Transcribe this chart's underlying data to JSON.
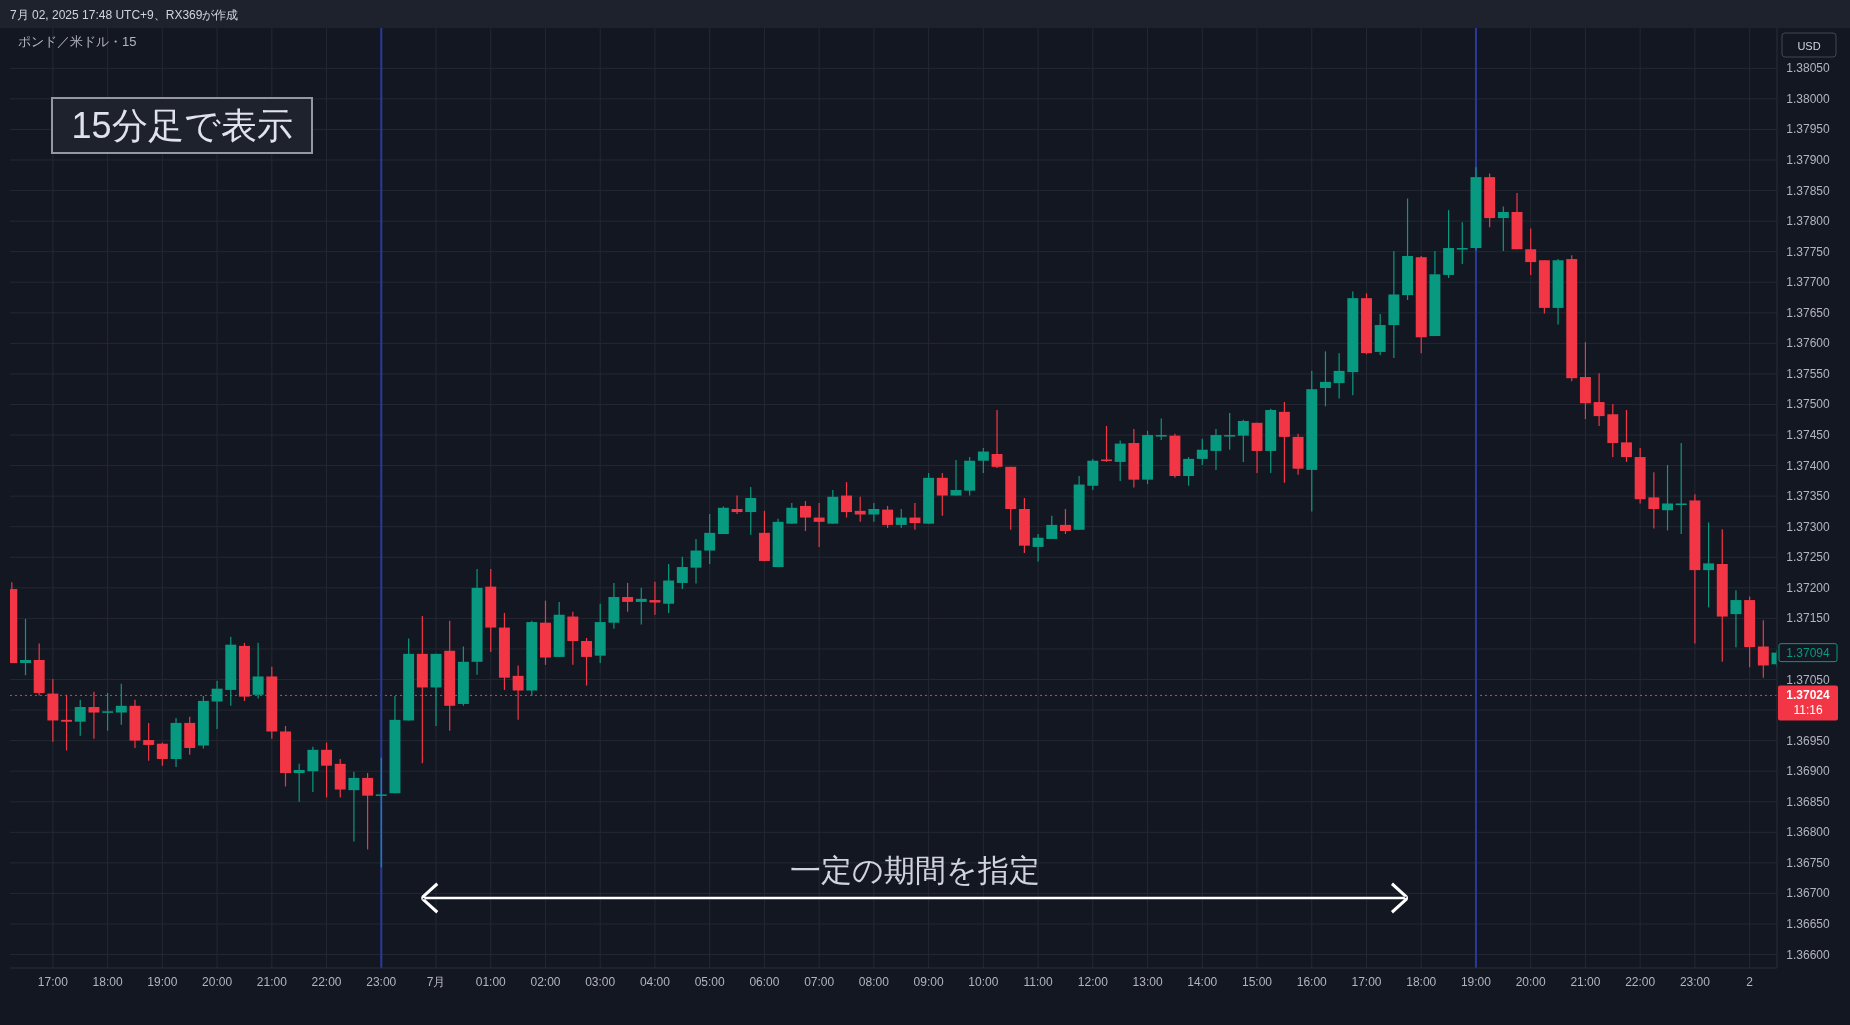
{
  "chart_data": {
    "type": "candlestick",
    "title": "7月 02, 2025 17:48 UTC+9、RX369が作成",
    "subtitle": "ポンド／米ドル・15",
    "ylabel": "USD",
    "x": [
      "2025-06-30T16:15",
      "2025-06-30T16:30",
      "2025-06-30T16:45",
      "2025-06-30T17:00",
      "2025-06-30T17:15",
      "2025-06-30T17:30",
      "2025-06-30T17:45",
      "2025-06-30T18:00",
      "2025-06-30T18:15",
      "2025-06-30T18:30",
      "2025-06-30T18:45",
      "2025-06-30T19:00",
      "2025-06-30T19:15",
      "2025-06-30T19:30",
      "2025-06-30T19:45",
      "2025-06-30T20:00",
      "2025-06-30T20:15",
      "2025-06-30T20:30",
      "2025-06-30T20:45",
      "2025-06-30T21:00",
      "2025-06-30T21:15",
      "2025-06-30T21:30",
      "2025-06-30T21:45",
      "2025-06-30T22:00",
      "2025-06-30T22:15",
      "2025-06-30T22:30",
      "2025-06-30T22:45",
      "2025-06-30T23:00",
      "2025-06-30T23:15",
      "2025-06-30T23:30",
      "2025-06-30T23:45",
      "2025-07-01T00:00",
      "2025-07-01T00:15",
      "2025-07-01T00:30",
      "2025-07-01T00:45",
      "2025-07-01T01:00",
      "2025-07-01T01:15",
      "2025-07-01T01:30",
      "2025-07-01T01:45",
      "2025-07-01T02:00",
      "2025-07-01T02:15",
      "2025-07-01T02:30",
      "2025-07-01T02:45",
      "2025-07-01T03:00",
      "2025-07-01T03:15",
      "2025-07-01T03:30",
      "2025-07-01T03:45",
      "2025-07-01T04:00",
      "2025-07-01T04:15",
      "2025-07-01T04:30",
      "2025-07-01T04:45",
      "2025-07-01T05:00",
      "2025-07-01T05:15",
      "2025-07-01T05:30",
      "2025-07-01T05:45",
      "2025-07-01T06:00",
      "2025-07-01T06:15",
      "2025-07-01T06:30",
      "2025-07-01T06:45",
      "2025-07-01T07:00",
      "2025-07-01T07:15",
      "2025-07-01T07:30",
      "2025-07-01T07:45",
      "2025-07-01T08:00",
      "2025-07-01T08:15",
      "2025-07-01T08:30",
      "2025-07-01T08:45",
      "2025-07-01T09:00",
      "2025-07-01T09:15",
      "2025-07-01T09:30",
      "2025-07-01T09:45",
      "2025-07-01T10:00",
      "2025-07-01T10:15",
      "2025-07-01T10:30",
      "2025-07-01T10:45",
      "2025-07-01T11:00",
      "2025-07-01T11:15",
      "2025-07-01T11:30",
      "2025-07-01T11:45",
      "2025-07-01T12:00",
      "2025-07-01T12:15",
      "2025-07-01T12:30",
      "2025-07-01T12:45",
      "2025-07-01T13:00",
      "2025-07-01T13:15",
      "2025-07-01T13:30",
      "2025-07-01T13:45",
      "2025-07-01T14:00",
      "2025-07-01T14:15",
      "2025-07-01T14:30",
      "2025-07-01T14:45",
      "2025-07-01T15:00",
      "2025-07-01T15:15",
      "2025-07-01T15:30",
      "2025-07-01T15:45",
      "2025-07-01T16:00",
      "2025-07-01T16:15",
      "2025-07-01T16:30",
      "2025-07-01T16:45",
      "2025-07-01T17:00",
      "2025-07-01T17:15",
      "2025-07-01T17:30",
      "2025-07-01T17:45",
      "2025-07-01T18:00",
      "2025-07-01T18:15",
      "2025-07-01T18:30",
      "2025-07-01T18:45",
      "2025-07-01T19:00",
      "2025-07-01T19:15",
      "2025-07-01T19:30",
      "2025-07-01T19:45",
      "2025-07-01T20:00",
      "2025-07-01T20:15",
      "2025-07-01T20:30",
      "2025-07-01T20:45",
      "2025-07-01T21:00",
      "2025-07-01T21:15",
      "2025-07-01T21:30",
      "2025-07-01T21:45",
      "2025-07-01T22:00",
      "2025-07-01T22:15",
      "2025-07-01T22:30",
      "2025-07-01T22:45",
      "2025-07-01T23:00",
      "2025-07-01T23:15",
      "2025-07-01T23:30",
      "2025-07-01T23:45",
      "2025-07-02T00:00",
      "2025-07-02T00:15",
      "2025-07-02T00:30"
    ],
    "ohlc": [
      [
        1.37198,
        1.37209,
        1.37077,
        1.37077
      ],
      [
        1.37077,
        1.37149,
        1.37057,
        1.37082
      ],
      [
        1.37082,
        1.37109,
        1.37024,
        1.37028
      ],
      [
        1.37027,
        1.37051,
        1.36948,
        1.36983
      ],
      [
        1.36984,
        1.37025,
        1.36934,
        1.36981
      ],
      [
        1.36981,
        1.37017,
        1.36958,
        1.37005
      ],
      [
        1.37005,
        1.3703,
        1.36953,
        1.36996
      ],
      [
        1.36996,
        1.37028,
        1.36966,
        1.36998
      ],
      [
        1.36996,
        1.37043,
        1.36976,
        1.37007
      ],
      [
        1.37007,
        1.37017,
        1.36938,
        1.3695
      ],
      [
        1.36951,
        1.36979,
        1.36917,
        1.36943
      ],
      [
        1.36945,
        1.36947,
        1.36909,
        1.3692
      ],
      [
        1.3692,
        1.36987,
        1.36907,
        1.36979
      ],
      [
        1.36979,
        1.36989,
        1.36927,
        1.36938
      ],
      [
        1.36942,
        1.37023,
        1.36937,
        1.37015
      ],
      [
        1.37014,
        1.37048,
        1.36969,
        1.37035
      ],
      [
        1.37033,
        1.3712,
        1.37007,
        1.37107
      ],
      [
        1.37105,
        1.3711,
        1.37015,
        1.37022
      ],
      [
        1.37025,
        1.3711,
        1.37019,
        1.37055
      ],
      [
        1.37055,
        1.37071,
        1.36953,
        1.36965
      ],
      [
        1.36965,
        1.36974,
        1.36875,
        1.36897
      ],
      [
        1.36897,
        1.36912,
        1.3685,
        1.36902
      ],
      [
        1.369,
        1.3694,
        1.36866,
        1.36935
      ],
      [
        1.36935,
        1.36947,
        1.36857,
        1.36909
      ],
      [
        1.36912,
        1.3692,
        1.36857,
        1.3687
      ],
      [
        1.36869,
        1.36899,
        1.36785,
        1.36889
      ],
      [
        1.36889,
        1.36897,
        1.36772,
        1.3686
      ],
      [
        1.36861,
        1.36922,
        1.36743,
        1.36862
      ],
      [
        1.36864,
        1.37023,
        1.36864,
        1.36984
      ],
      [
        1.36983,
        1.37117,
        1.36983,
        1.37092
      ],
      [
        1.37092,
        1.37154,
        1.36913,
        1.37037
      ],
      [
        1.37037,
        1.37092,
        1.36974,
        1.37092
      ],
      [
        1.37097,
        1.37146,
        1.36966,
        1.37007
      ],
      [
        1.3701,
        1.37104,
        1.37007,
        1.37079
      ],
      [
        1.37079,
        1.37231,
        1.37058,
        1.372
      ],
      [
        1.37202,
        1.37231,
        1.37095,
        1.37135
      ],
      [
        1.37135,
        1.37159,
        1.37033,
        1.37053
      ],
      [
        1.37056,
        1.37073,
        1.36984,
        1.37032
      ],
      [
        1.37032,
        1.37146,
        1.37023,
        1.37144
      ],
      [
        1.37143,
        1.37179,
        1.37074,
        1.37086
      ],
      [
        1.37087,
        1.37177,
        1.37087,
        1.37156
      ],
      [
        1.37153,
        1.37161,
        1.37074,
        1.37113
      ],
      [
        1.37113,
        1.37118,
        1.3704,
        1.37087
      ],
      [
        1.37089,
        1.37174,
        1.37077,
        1.37144
      ],
      [
        1.37143,
        1.37208,
        1.37133,
        1.37185
      ],
      [
        1.37185,
        1.37208,
        1.37161,
        1.37177
      ],
      [
        1.37177,
        1.372,
        1.3714,
        1.37182
      ],
      [
        1.3718,
        1.3721,
        1.37156,
        1.37176
      ],
      [
        1.37174,
        1.37239,
        1.37159,
        1.37212
      ],
      [
        1.37208,
        1.37251,
        1.37198,
        1.37234
      ],
      [
        1.37233,
        1.3728,
        1.37207,
        1.37261
      ],
      [
        1.37261,
        1.37321,
        1.37239,
        1.3729
      ],
      [
        1.37288,
        1.37333,
        1.37288,
        1.37331
      ],
      [
        1.37329,
        1.37351,
        1.37321,
        1.37324
      ],
      [
        1.37324,
        1.37365,
        1.37287,
        1.37347
      ],
      [
        1.3729,
        1.37326,
        1.37244,
        1.37244
      ],
      [
        1.37234,
        1.37313,
        1.37234,
        1.37308
      ],
      [
        1.37305,
        1.37339,
        1.37305,
        1.37331
      ],
      [
        1.37334,
        1.37342,
        1.37293,
        1.37315
      ],
      [
        1.37315,
        1.37339,
        1.37267,
        1.37308
      ],
      [
        1.37305,
        1.3736,
        1.37305,
        1.37349
      ],
      [
        1.37351,
        1.37373,
        1.37315,
        1.37324
      ],
      [
        1.37326,
        1.37349,
        1.37308,
        1.3732
      ],
      [
        1.3732,
        1.37339,
        1.37308,
        1.37329
      ],
      [
        1.37328,
        1.37334,
        1.37298,
        1.37303
      ],
      [
        1.37303,
        1.37329,
        1.37298,
        1.37315
      ],
      [
        1.37315,
        1.37339,
        1.37295,
        1.37306
      ],
      [
        1.37305,
        1.37388,
        1.37305,
        1.3738
      ],
      [
        1.3738,
        1.37388,
        1.37318,
        1.37351
      ],
      [
        1.37351,
        1.37409,
        1.37351,
        1.3736
      ],
      [
        1.37359,
        1.37414,
        1.37351,
        1.37408
      ],
      [
        1.37408,
        1.37429,
        1.37388,
        1.37423
      ],
      [
        1.37419,
        1.37491,
        1.37396,
        1.37398
      ],
      [
        1.37398,
        1.37398,
        1.37295,
        1.37329
      ],
      [
        1.37329,
        1.37347,
        1.37257,
        1.37269
      ],
      [
        1.37267,
        1.37288,
        1.37243,
        1.37282
      ],
      [
        1.3728,
        1.37318,
        1.3728,
        1.37303
      ],
      [
        1.37303,
        1.37329,
        1.37288,
        1.37293
      ],
      [
        1.37295,
        1.37383,
        1.37295,
        1.37369
      ],
      [
        1.37367,
        1.37411,
        1.3736,
        1.37408
      ],
      [
        1.3741,
        1.37465,
        1.37406,
        1.37408
      ],
      [
        1.37406,
        1.37441,
        1.37375,
        1.37436
      ],
      [
        1.37437,
        1.3746,
        1.37364,
        1.37377
      ],
      [
        1.37377,
        1.37457,
        1.3737,
        1.3745
      ],
      [
        1.37449,
        1.37477,
        1.37442,
        1.3745
      ],
      [
        1.37449,
        1.37452,
        1.3738,
        1.37383
      ],
      [
        1.37383,
        1.37414,
        1.37367,
        1.37411
      ],
      [
        1.37411,
        1.37444,
        1.37401,
        1.37426
      ],
      [
        1.37424,
        1.3746,
        1.37393,
        1.3745
      ],
      [
        1.37449,
        1.37486,
        1.37426,
        1.3745
      ],
      [
        1.37449,
        1.37475,
        1.37406,
        1.37473
      ],
      [
        1.3747,
        1.3747,
        1.37388,
        1.37424
      ],
      [
        1.37424,
        1.37493,
        1.37388,
        1.37491
      ],
      [
        1.37488,
        1.37504,
        1.37372,
        1.37447
      ],
      [
        1.37447,
        1.37452,
        1.37385,
        1.37395
      ],
      [
        1.37393,
        1.37555,
        1.37325,
        1.37525
      ],
      [
        1.37527,
        1.37587,
        1.37497,
        1.37537
      ],
      [
        1.37535,
        1.37584,
        1.3751,
        1.37555
      ],
      [
        1.37553,
        1.37685,
        1.37515,
        1.37674
      ],
      [
        1.37674,
        1.37682,
        1.37582,
        1.37584
      ],
      [
        1.37586,
        1.37648,
        1.37581,
        1.3763
      ],
      [
        1.3763,
        1.37751,
        1.37576,
        1.3768
      ],
      [
        1.37679,
        1.37837,
        1.37671,
        1.37743
      ],
      [
        1.37741,
        1.37743,
        1.37584,
        1.3761
      ],
      [
        1.37612,
        1.37751,
        1.37612,
        1.37713
      ],
      [
        1.37712,
        1.37818,
        1.37707,
        1.37756
      ],
      [
        1.37755,
        1.37798,
        1.3773,
        1.37756
      ],
      [
        1.37756,
        1.37888,
        1.37752,
        1.37872
      ],
      [
        1.37872,
        1.37878,
        1.3779,
        1.37805
      ],
      [
        1.37805,
        1.37824,
        1.37751,
        1.37815
      ],
      [
        1.37815,
        1.37846,
        1.37754,
        1.37754
      ],
      [
        1.37754,
        1.37788,
        1.37712,
        1.37733
      ],
      [
        1.37736,
        1.37736,
        1.37649,
        1.37658
      ],
      [
        1.37658,
        1.37738,
        1.37631,
        1.37736
      ],
      [
        1.37738,
        1.37744,
        1.37538,
        1.37543
      ],
      [
        1.37545,
        1.37602,
        1.37476,
        1.37502
      ],
      [
        1.37504,
        1.37551,
        1.37465,
        1.37481
      ],
      [
        1.37484,
        1.37501,
        1.37414,
        1.37437
      ],
      [
        1.37438,
        1.37491,
        1.37406,
        1.37414
      ],
      [
        1.37414,
        1.37429,
        1.37338,
        1.37345
      ],
      [
        1.37348,
        1.37389,
        1.37297,
        1.37329
      ],
      [
        1.37327,
        1.37401,
        1.37294,
        1.37338
      ],
      [
        1.37337,
        1.37437,
        1.37288,
        1.37338
      ],
      [
        1.37343,
        1.37353,
        1.37109,
        1.37229
      ],
      [
        1.37229,
        1.37307,
        1.37168,
        1.3724
      ],
      [
        1.37239,
        1.37296,
        1.37079,
        1.37153
      ],
      [
        1.37157,
        1.37196,
        1.37103,
        1.3718
      ],
      [
        1.3718,
        1.37186,
        1.3707,
        1.37103
      ],
      [
        1.37104,
        1.37147,
        1.37053,
        1.37073
      ],
      [
        1.37075,
        1.37098,
        1.3707,
        1.37094
      ]
    ],
    "colors": [
      "#f23645",
      "#089981",
      "#f23645",
      "#f23645",
      "#f23645",
      "#089981",
      "#f23645",
      "#089981",
      "#089981",
      "#f23645",
      "#f23645",
      "#f23645",
      "#089981",
      "#f23645",
      "#089981",
      "#089981",
      "#089981",
      "#f23645",
      "#089981",
      "#f23645",
      "#f23645",
      "#089981",
      "#089981",
      "#f23645",
      "#f23645",
      "#089981",
      "#f23645",
      "#089981",
      "#089981",
      "#089981",
      "#f23645",
      "#089981",
      "#f23645",
      "#089981",
      "#089981",
      "#f23645",
      "#f23645",
      "#f23645",
      "#089981",
      "#f23645",
      "#089981",
      "#f23645",
      "#f23645",
      "#089981",
      "#089981",
      "#f23645",
      "#089981",
      "#f23645",
      "#089981",
      "#089981",
      "#089981",
      "#089981",
      "#089981",
      "#f23645",
      "#089981",
      "#f23645",
      "#089981",
      "#089981",
      "#f23645",
      "#f23645",
      "#089981",
      "#f23645",
      "#f23645",
      "#089981",
      "#f23645",
      "#089981",
      "#f23645",
      "#089981",
      "#f23645",
      "#089981",
      "#089981",
      "#089981",
      "#f23645",
      "#f23645",
      "#f23645",
      "#089981",
      "#089981",
      "#f23645",
      "#089981",
      "#089981",
      "#f23645",
      "#089981",
      "#f23645",
      "#089981",
      "#089981",
      "#f23645",
      "#089981",
      "#089981",
      "#089981",
      "#089981",
      "#089981",
      "#f23645",
      "#089981",
      "#f23645",
      "#f23645",
      "#089981",
      "#089981",
      "#089981",
      "#089981",
      "#f23645",
      "#089981",
      "#089981",
      "#089981",
      "#f23645",
      "#089981",
      "#089981",
      "#089981",
      "#089981",
      "#f23645",
      "#089981",
      "#f23645",
      "#f23645",
      "#f23645",
      "#089981",
      "#f23645",
      "#f23645",
      "#f23645",
      "#f23645",
      "#f23645",
      "#f23645",
      "#f23645",
      "#089981",
      "#089981",
      "#f23645",
      "#089981",
      "#f23645",
      "#089981",
      "#f23645",
      "#f23645",
      "#089981"
    ],
    "xlim": [
      "2025-06-30T16:13",
      "2025-07-02T00:30"
    ],
    "xticks": [
      {
        "value": "2025-06-30T17:00",
        "label": "17:00"
      },
      {
        "value": "2025-06-30T18:00",
        "label": "18:00"
      },
      {
        "value": "2025-06-30T19:00",
        "label": "19:00"
      },
      {
        "value": "2025-06-30T20:00",
        "label": "20:00"
      },
      {
        "value": "2025-06-30T21:00",
        "label": "21:00"
      },
      {
        "value": "2025-06-30T22:00",
        "label": "22:00"
      },
      {
        "value": "2025-06-30T23:00",
        "label": "23:00"
      },
      {
        "value": "2025-07-01T00:00",
        "label": "7月"
      },
      {
        "value": "2025-07-01T01:00",
        "label": "01:00"
      },
      {
        "value": "2025-07-01T02:00",
        "label": "02:00"
      },
      {
        "value": "2025-07-01T03:00",
        "label": "03:00"
      },
      {
        "value": "2025-07-01T04:00",
        "label": "04:00"
      },
      {
        "value": "2025-07-01T05:00",
        "label": "05:00"
      },
      {
        "value": "2025-07-01T06:00",
        "label": "06:00"
      },
      {
        "value": "2025-07-01T07:00",
        "label": "07:00"
      },
      {
        "value": "2025-07-01T08:00",
        "label": "08:00"
      },
      {
        "value": "2025-07-01T09:00",
        "label": "09:00"
      },
      {
        "value": "2025-07-01T10:00",
        "label": "10:00"
      },
      {
        "value": "2025-07-01T11:00",
        "label": "11:00"
      },
      {
        "value": "2025-07-01T12:00",
        "label": "12:00"
      },
      {
        "value": "2025-07-01T13:00",
        "label": "13:00"
      },
      {
        "value": "2025-07-01T14:00",
        "label": "14:00"
      },
      {
        "value": "2025-07-01T15:00",
        "label": "15:00"
      },
      {
        "value": "2025-07-01T16:00",
        "label": "16:00"
      },
      {
        "value": "2025-07-01T17:00",
        "label": "17:00"
      },
      {
        "value": "2025-07-01T18:00",
        "label": "18:00"
      },
      {
        "value": "2025-07-01T19:00",
        "label": "19:00"
      },
      {
        "value": "2025-07-01T20:00",
        "label": "20:00"
      },
      {
        "value": "2025-07-01T21:00",
        "label": "21:00"
      },
      {
        "value": "2025-07-01T22:00",
        "label": "22:00"
      },
      {
        "value": "2025-07-01T23:00",
        "label": "23:00"
      },
      {
        "value": "2025-07-02T00:00",
        "label": "2"
      }
    ],
    "ylim": [
      1.36578,
      1.38116
    ],
    "yticks": [
      {
        "value": 1.366,
        "label": "1.36600"
      },
      {
        "value": 1.3665,
        "label": "1.36650"
      },
      {
        "value": 1.367,
        "label": "1.36700"
      },
      {
        "value": 1.3675,
        "label": "1.36750"
      },
      {
        "value": 1.368,
        "label": "1.36800"
      },
      {
        "value": 1.3685,
        "label": "1.36850"
      },
      {
        "value": 1.369,
        "label": "1.36900"
      },
      {
        "value": 1.3695,
        "label": "1.36950"
      },
      {
        "value": 1.37,
        "label": null
      },
      {
        "value": 1.3705,
        "label": "1.37050"
      },
      {
        "value": 1.371,
        "label": null
      },
      {
        "value": 1.3715,
        "label": "1.37150"
      },
      {
        "value": 1.372,
        "label": "1.37200"
      },
      {
        "value": 1.3725,
        "label": "1.37250"
      },
      {
        "value": 1.373,
        "label": "1.37300"
      },
      {
        "value": 1.3735,
        "label": "1.37350"
      },
      {
        "value": 1.374,
        "label": "1.37400"
      },
      {
        "value": 1.3745,
        "label": "1.37450"
      },
      {
        "value": 1.375,
        "label": "1.37500"
      },
      {
        "value": 1.3755,
        "label": "1.37550"
      },
      {
        "value": 1.376,
        "label": "1.37600"
      },
      {
        "value": 1.3765,
        "label": "1.37650"
      },
      {
        "value": 1.377,
        "label": "1.37700"
      },
      {
        "value": 1.3775,
        "label": "1.37750"
      },
      {
        "value": 1.378,
        "label": "1.37800"
      },
      {
        "value": 1.3785,
        "label": "1.37850"
      },
      {
        "value": 1.379,
        "label": "1.37900"
      },
      {
        "value": 1.3795,
        "label": "1.37950"
      },
      {
        "value": 1.38,
        "label": "1.38000"
      },
      {
        "value": 1.3805,
        "label": "1.38050"
      }
    ],
    "grid": true,
    "ref_lines": [
      {
        "axis": "x",
        "value": "2025-06-30T23:00",
        "color": "#2a3a9c",
        "line_style": "solid"
      },
      {
        "axis": "x",
        "value": "2025-07-01T19:00",
        "color": "#2a3a9c",
        "line_style": "solid"
      },
      {
        "axis": "y",
        "value": 1.37024,
        "label": "1.37024",
        "color": "#f23645",
        "line_style": "dotted"
      }
    ],
    "annotations": [
      "15分足で表示",
      "一定の期間を指定",
      "11:16",
      {
        "text": "1.37094",
        "x": "2025-07-02T00:30",
        "y": 1.37094
      }
    ]
  }
}
